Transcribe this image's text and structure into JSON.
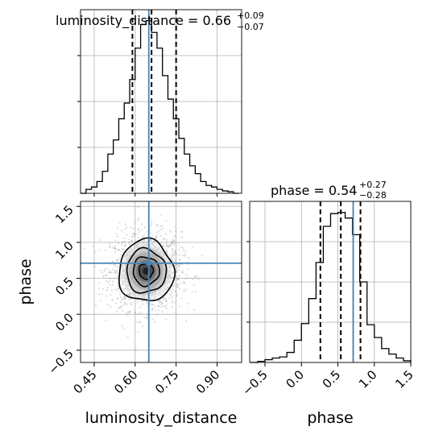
{
  "chart_data": {
    "type": "corner",
    "parameters": [
      "luminosity_distance",
      "phase"
    ],
    "truths": {
      "luminosity_distance": 0.65,
      "phase": 0.71
    },
    "colors": {
      "truth": "#4682b4",
      "hist": "#000000",
      "grid": "#b0b0b0",
      "scatter": "#9e9e9e"
    },
    "grid": true,
    "panels": {
      "luminosity_distance_hist": {
        "title": {
          "main": "luminosity_distance = 0.66",
          "sup": "+0.09",
          "sub": "−0.07"
        },
        "xlim": [
          0.4,
          0.99
        ],
        "bin_edges": [
          0.4,
          0.42,
          0.44,
          0.46,
          0.48,
          0.5,
          0.52,
          0.54,
          0.56,
          0.58,
          0.6,
          0.62,
          0.64,
          0.66,
          0.68,
          0.7,
          0.72,
          0.74,
          0.76,
          0.78,
          0.8,
          0.82,
          0.84,
          0.86,
          0.88,
          0.9,
          0.92,
          0.94,
          0.96,
          0.98
        ],
        "counts": [
          0,
          5,
          8,
          15,
          28,
          50,
          68,
          95,
          115,
          145,
          185,
          215,
          220,
          205,
          185,
          150,
          120,
          95,
          70,
          50,
          35,
          25,
          15,
          10,
          8,
          5,
          3,
          2,
          0
        ],
        "quantiles": [
          0.59,
          0.66,
          0.75
        ],
        "ylim": [
          0,
          234
        ]
      },
      "phase_hist": {
        "title": {
          "main": "phase = 0.54",
          "sup": "+0.27",
          "sub": "−0.28"
        },
        "xlim": [
          -0.71,
          1.5
        ],
        "bin_edges": [
          -0.7,
          -0.6,
          -0.5,
          -0.4,
          -0.3,
          -0.2,
          -0.1,
          0.0,
          0.1,
          0.2,
          0.3,
          0.4,
          0.5,
          0.6,
          0.7,
          0.8,
          0.9,
          1.0,
          1.1,
          1.2,
          1.3,
          1.4,
          1.5
        ],
        "counts": [
          0,
          2,
          5,
          8,
          10,
          18,
          40,
          70,
          115,
          180,
          245,
          268,
          270,
          260,
          230,
          145,
          68,
          45,
          25,
          15,
          8,
          3
        ],
        "quantiles": [
          0.26,
          0.54,
          0.81
        ],
        "ylim": [
          0,
          290
        ]
      },
      "joint": {
        "xlim": [
          0.4,
          0.99
        ],
        "ylim": [
          -0.67,
          1.57
        ],
        "center": [
          0.64,
          0.6
        ],
        "sigma": [
          0.065,
          0.27
        ],
        "contour_levels": [
          {
            "a": 0.026,
            "b": 0.11
          },
          {
            "a": 0.048,
            "b": 0.2
          },
          {
            "a": 0.072,
            "b": 0.305
          },
          {
            "a": 0.101,
            "b": 0.43
          }
        ]
      }
    },
    "axes": {
      "x_ticks_ld": [
        "0.45",
        "0.60",
        "0.75",
        "0.90"
      ],
      "x_tick_values_ld": [
        0.45,
        0.6,
        0.75,
        0.9
      ],
      "y_ticks_phase": [
        "−0.5",
        "0.0",
        "0.5",
        "1.0",
        "1.5"
      ],
      "y_tick_values_phase": [
        -0.5,
        0.0,
        0.5,
        1.0,
        1.5
      ],
      "x_ticks_phase": [
        "−0.5",
        "0.0",
        "0.5",
        "1.0",
        "1.5"
      ],
      "x_tick_values_phase": [
        -0.5,
        0.0,
        0.5,
        1.0,
        1.5
      ],
      "xlabel_ld": "luminosity_distance",
      "xlabel_phase": "phase",
      "ylabel_phase": "phase"
    }
  }
}
